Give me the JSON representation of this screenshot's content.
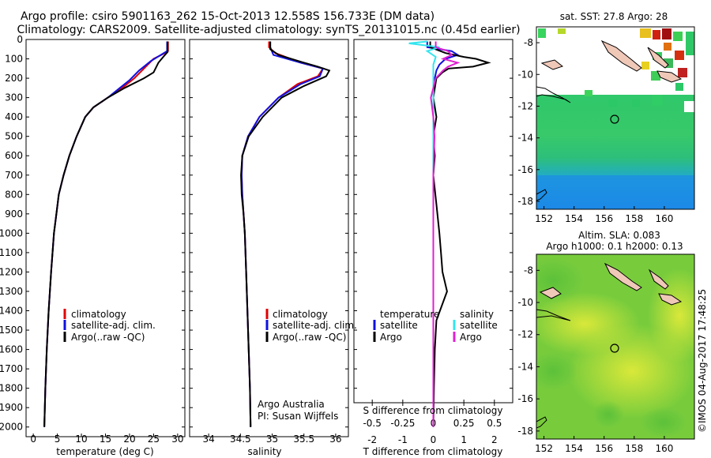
{
  "header": {
    "line1": "Argo profile: csiro 5901163_262 15-Oct-2013 12.558S 156.733E (DM data)",
    "line2": "Climatology: CARS2009. Satellite-adjusted climatology: synTS_20131015.nc (0.45d earlier)"
  },
  "colors": {
    "climatology": "#e00000",
    "satellite": "#1010e0",
    "argo": "#000000",
    "satellite_salinity": "#33e5ee",
    "argo_salinity": "#e020d0"
  },
  "chart_data": [
    {
      "type": "line",
      "id": "temperature",
      "xlabel": "temperature (deg C)",
      "ylabel": "",
      "xlim": [
        -1.5,
        31.5
      ],
      "ylim": [
        2050,
        0
      ],
      "xticks": [
        0,
        5,
        10,
        15,
        20,
        25,
        30
      ],
      "yticks": [
        0,
        100,
        200,
        300,
        400,
        500,
        600,
        700,
        800,
        900,
        1000,
        1100,
        1200,
        1300,
        1400,
        1500,
        1600,
        1700,
        1800,
        1900,
        2000
      ],
      "legend": [
        "climatology",
        "satellite-adj. clim.",
        "Argo(..raw -QC)"
      ],
      "series": [
        {
          "name": "climatology",
          "color": "#e00000",
          "points": [
            [
              28.0,
              10
            ],
            [
              28.0,
              60
            ],
            [
              27.0,
              75
            ],
            [
              25.0,
              100
            ],
            [
              23.0,
              150
            ],
            [
              21.0,
              200
            ],
            [
              18.5,
              250
            ],
            [
              15.5,
              300
            ],
            [
              12.5,
              350
            ],
            [
              10.8,
              400
            ],
            [
              9.0,
              500
            ],
            [
              7.5,
              600
            ],
            [
              6.3,
              700
            ],
            [
              5.3,
              800
            ],
            [
              4.8,
              900
            ],
            [
              4.3,
              1000
            ],
            [
              3.7,
              1200
            ],
            [
              3.2,
              1400
            ],
            [
              2.8,
              1600
            ],
            [
              2.5,
              1800
            ],
            [
              2.3,
              2000
            ]
          ]
        },
        {
          "name": "satellite-adj. clim.",
          "color": "#1010e0",
          "points": [
            [
              27.8,
              10
            ],
            [
              27.8,
              60
            ],
            [
              26.5,
              80
            ],
            [
              24.5,
              110
            ],
            [
              22.0,
              160
            ],
            [
              20.0,
              210
            ],
            [
              18.0,
              250
            ],
            [
              15.5,
              300
            ],
            [
              12.5,
              350
            ],
            [
              10.8,
              400
            ],
            [
              9.0,
              500
            ],
            [
              7.5,
              600
            ],
            [
              6.3,
              700
            ],
            [
              5.3,
              800
            ],
            [
              4.8,
              900
            ],
            [
              4.3,
              1000
            ],
            [
              3.7,
              1200
            ],
            [
              3.2,
              1400
            ],
            [
              2.8,
              1600
            ],
            [
              2.5,
              1800
            ],
            [
              2.3,
              2000
            ]
          ]
        },
        {
          "name": "Argo",
          "color": "#000000",
          "points": [
            [
              27.9,
              10
            ],
            [
              27.9,
              65
            ],
            [
              27.0,
              90
            ],
            [
              26.0,
              120
            ],
            [
              25.0,
              170
            ],
            [
              23.0,
              200
            ],
            [
              19.0,
              250
            ],
            [
              15.5,
              300
            ],
            [
              12.5,
              350
            ],
            [
              10.8,
              400
            ],
            [
              9.0,
              500
            ],
            [
              7.5,
              600
            ],
            [
              6.3,
              700
            ],
            [
              5.3,
              800
            ],
            [
              4.8,
              900
            ],
            [
              4.3,
              1000
            ],
            [
              3.7,
              1200
            ],
            [
              3.2,
              1400
            ],
            [
              2.8,
              1600
            ],
            [
              2.5,
              1800
            ],
            [
              2.3,
              2000
            ]
          ]
        }
      ]
    },
    {
      "type": "line",
      "id": "salinity",
      "xlabel": "salinity",
      "xlim": [
        33.7,
        36.2
      ],
      "ylim": [
        2050,
        0
      ],
      "xticks": [
        34,
        34.5,
        35,
        35.5,
        36
      ],
      "xticklabels": [
        "34",
        "34.5",
        "35",
        "35.5",
        "36"
      ],
      "legend": [
        "climatology",
        "satellite-adj. clim.",
        "Argo(..raw -QC)"
      ],
      "annotation": [
        "Argo Australia",
        "PI: Susan Wijffels"
      ],
      "series": [
        {
          "name": "climatology",
          "color": "#e00000",
          "points": [
            [
              34.95,
              10
            ],
            [
              34.95,
              40
            ],
            [
              35.05,
              70
            ],
            [
              35.45,
              120
            ],
            [
              35.8,
              150
            ],
            [
              35.72,
              190
            ],
            [
              35.4,
              230
            ],
            [
              35.1,
              300
            ],
            [
              34.8,
              400
            ],
            [
              34.62,
              500
            ],
            [
              34.53,
              600
            ],
            [
              34.52,
              700
            ],
            [
              34.53,
              800
            ],
            [
              34.55,
              900
            ],
            [
              34.57,
              1000
            ],
            [
              34.59,
              1200
            ],
            [
              34.61,
              1400
            ],
            [
              34.63,
              1600
            ],
            [
              34.65,
              1800
            ],
            [
              34.66,
              2000
            ]
          ]
        },
        {
          "name": "satellite-adj. clim.",
          "color": "#1010e0",
          "points": [
            [
              34.97,
              10
            ],
            [
              34.97,
              40
            ],
            [
              35.02,
              80
            ],
            [
              35.45,
              120
            ],
            [
              35.8,
              150
            ],
            [
              35.75,
              190
            ],
            [
              35.45,
              230
            ],
            [
              35.1,
              300
            ],
            [
              34.8,
              400
            ],
            [
              34.62,
              500
            ],
            [
              34.53,
              600
            ],
            [
              34.52,
              700
            ],
            [
              34.53,
              800
            ],
            [
              34.55,
              900
            ],
            [
              34.57,
              1000
            ],
            [
              34.59,
              1200
            ],
            [
              34.61,
              1400
            ],
            [
              34.63,
              1600
            ],
            [
              34.65,
              1800
            ],
            [
              34.66,
              2000
            ]
          ]
        },
        {
          "name": "Argo",
          "color": "#000000",
          "points": [
            [
              34.97,
              10
            ],
            [
              34.97,
              50
            ],
            [
              35.1,
              80
            ],
            [
              35.4,
              110
            ],
            [
              35.72,
              140
            ],
            [
              35.9,
              160
            ],
            [
              35.85,
              190
            ],
            [
              35.5,
              240
            ],
            [
              35.15,
              300
            ],
            [
              34.85,
              400
            ],
            [
              34.63,
              500
            ],
            [
              34.53,
              600
            ],
            [
              34.51,
              700
            ],
            [
              34.52,
              800
            ],
            [
              34.55,
              900
            ],
            [
              34.57,
              1000
            ],
            [
              34.59,
              1200
            ],
            [
              34.61,
              1400
            ],
            [
              34.63,
              1600
            ],
            [
              34.65,
              1800
            ],
            [
              34.66,
              2000
            ]
          ]
        }
      ]
    },
    {
      "type": "line",
      "id": "differences",
      "xlabel": "T difference from climatology",
      "xlabel_top": "S difference from climatology",
      "xlim": [
        -2.6,
        2.6
      ],
      "ylim": [
        2050,
        0
      ],
      "xticks": [
        -2,
        -1,
        0,
        1,
        2
      ],
      "xticklabels": [
        "-2",
        "-1",
        "0",
        "1",
        "2"
      ],
      "xticks_top": [
        -0.5,
        -0.25,
        0,
        0.25,
        0.5
      ],
      "xticklabels_top": [
        "-0.5",
        "-0.25",
        "0",
        "0.25",
        "0.5"
      ],
      "s_scale": 4,
      "legend_temperature": {
        "title": "temperature",
        "items": [
          "satellite",
          "Argo"
        ]
      },
      "legend_salinity": {
        "title": "salinity",
        "items": [
          "satellite",
          "Argo"
        ]
      },
      "series": [
        {
          "name": "T satellite",
          "kind": "T",
          "color": "#1010e0",
          "points": [
            [
              -0.2,
              10
            ],
            [
              -0.2,
              40
            ],
            [
              0.6,
              60
            ],
            [
              0.8,
              80
            ],
            [
              0.4,
              100
            ],
            [
              0.2,
              130
            ],
            [
              0.1,
              160
            ],
            [
              0.05,
              200
            ],
            [
              0.0,
              300
            ],
            [
              0.0,
              500
            ],
            [
              0.0,
              1000
            ],
            [
              0.0,
              1500
            ],
            [
              0.0,
              2000
            ]
          ]
        },
        {
          "name": "T Argo",
          "kind": "T",
          "color": "#000000",
          "points": [
            [
              -0.1,
              10
            ],
            [
              -0.1,
              40
            ],
            [
              0.4,
              70
            ],
            [
              1.0,
              90
            ],
            [
              1.4,
              100
            ],
            [
              1.8,
              120
            ],
            [
              1.3,
              140
            ],
            [
              0.5,
              150
            ],
            [
              0.3,
              170
            ],
            [
              0.1,
              200
            ],
            [
              0.0,
              300
            ],
            [
              0.1,
              400
            ],
            [
              0.0,
              500
            ],
            [
              0.05,
              600
            ],
            [
              0.0,
              700
            ],
            [
              0.1,
              850
            ],
            [
              0.2,
              1000
            ],
            [
              0.25,
              1100
            ],
            [
              0.3,
              1200
            ],
            [
              0.45,
              1300
            ],
            [
              0.1,
              1450
            ],
            [
              0.05,
              1600
            ],
            [
              0.02,
              1800
            ],
            [
              0.0,
              2000
            ]
          ]
        },
        {
          "name": "S satellite",
          "kind": "S",
          "color": "#33e5ee",
          "points": [
            [
              -0.05,
              10
            ],
            [
              -0.2,
              20
            ],
            [
              0.05,
              40
            ],
            [
              -0.05,
              60
            ],
            [
              0.02,
              90
            ],
            [
              0.0,
              130
            ],
            [
              0.0,
              300
            ],
            [
              0.0,
              800
            ],
            [
              0.0,
              1500
            ],
            [
              0.0,
              2000
            ]
          ]
        },
        {
          "name": "S Argo",
          "kind": "S",
          "color": "#e020d0",
          "points": [
            [
              0.02,
              10
            ],
            [
              0.02,
              40
            ],
            [
              0.12,
              60
            ],
            [
              0.15,
              80
            ],
            [
              0.08,
              100
            ],
            [
              0.2,
              120
            ],
            [
              0.12,
              140
            ],
            [
              0.08,
              160
            ],
            [
              0.02,
              200
            ],
            [
              -0.02,
              300
            ],
            [
              0.0,
              400
            ],
            [
              0.01,
              500
            ],
            [
              0.0,
              700
            ],
            [
              0.0,
              1000
            ],
            [
              0.0,
              1500
            ],
            [
              0.0,
              2000
            ]
          ]
        }
      ]
    },
    {
      "type": "heatmap",
      "id": "sst_map",
      "title": "sat. SST: 27.8 Argo: 28",
      "xlim": [
        151.5,
        162
      ],
      "ylim": [
        -18.5,
        -7
      ],
      "xticks": [
        152,
        154,
        156,
        158,
        160
      ],
      "yticks": [
        -8,
        -10,
        -12,
        -14,
        -16,
        -18
      ],
      "marker": [
        156.733,
        -12.558
      ]
    },
    {
      "type": "heatmap",
      "id": "sla_map",
      "title": "Altim. SLA: 0.083",
      "subtitle": "Argo h1000: 0.1 h2000: 0.13",
      "xlim": [
        151.5,
        162
      ],
      "ylim": [
        -18.5,
        -7
      ],
      "xticks": [
        152,
        154,
        156,
        158,
        160
      ],
      "yticks": [
        -8,
        -10,
        -12,
        -14,
        -16,
        -18
      ],
      "marker": [
        156.733,
        -12.558
      ]
    }
  ],
  "footer": {
    "credit": "©IMOS 04-Aug-2017 17:48:25"
  }
}
